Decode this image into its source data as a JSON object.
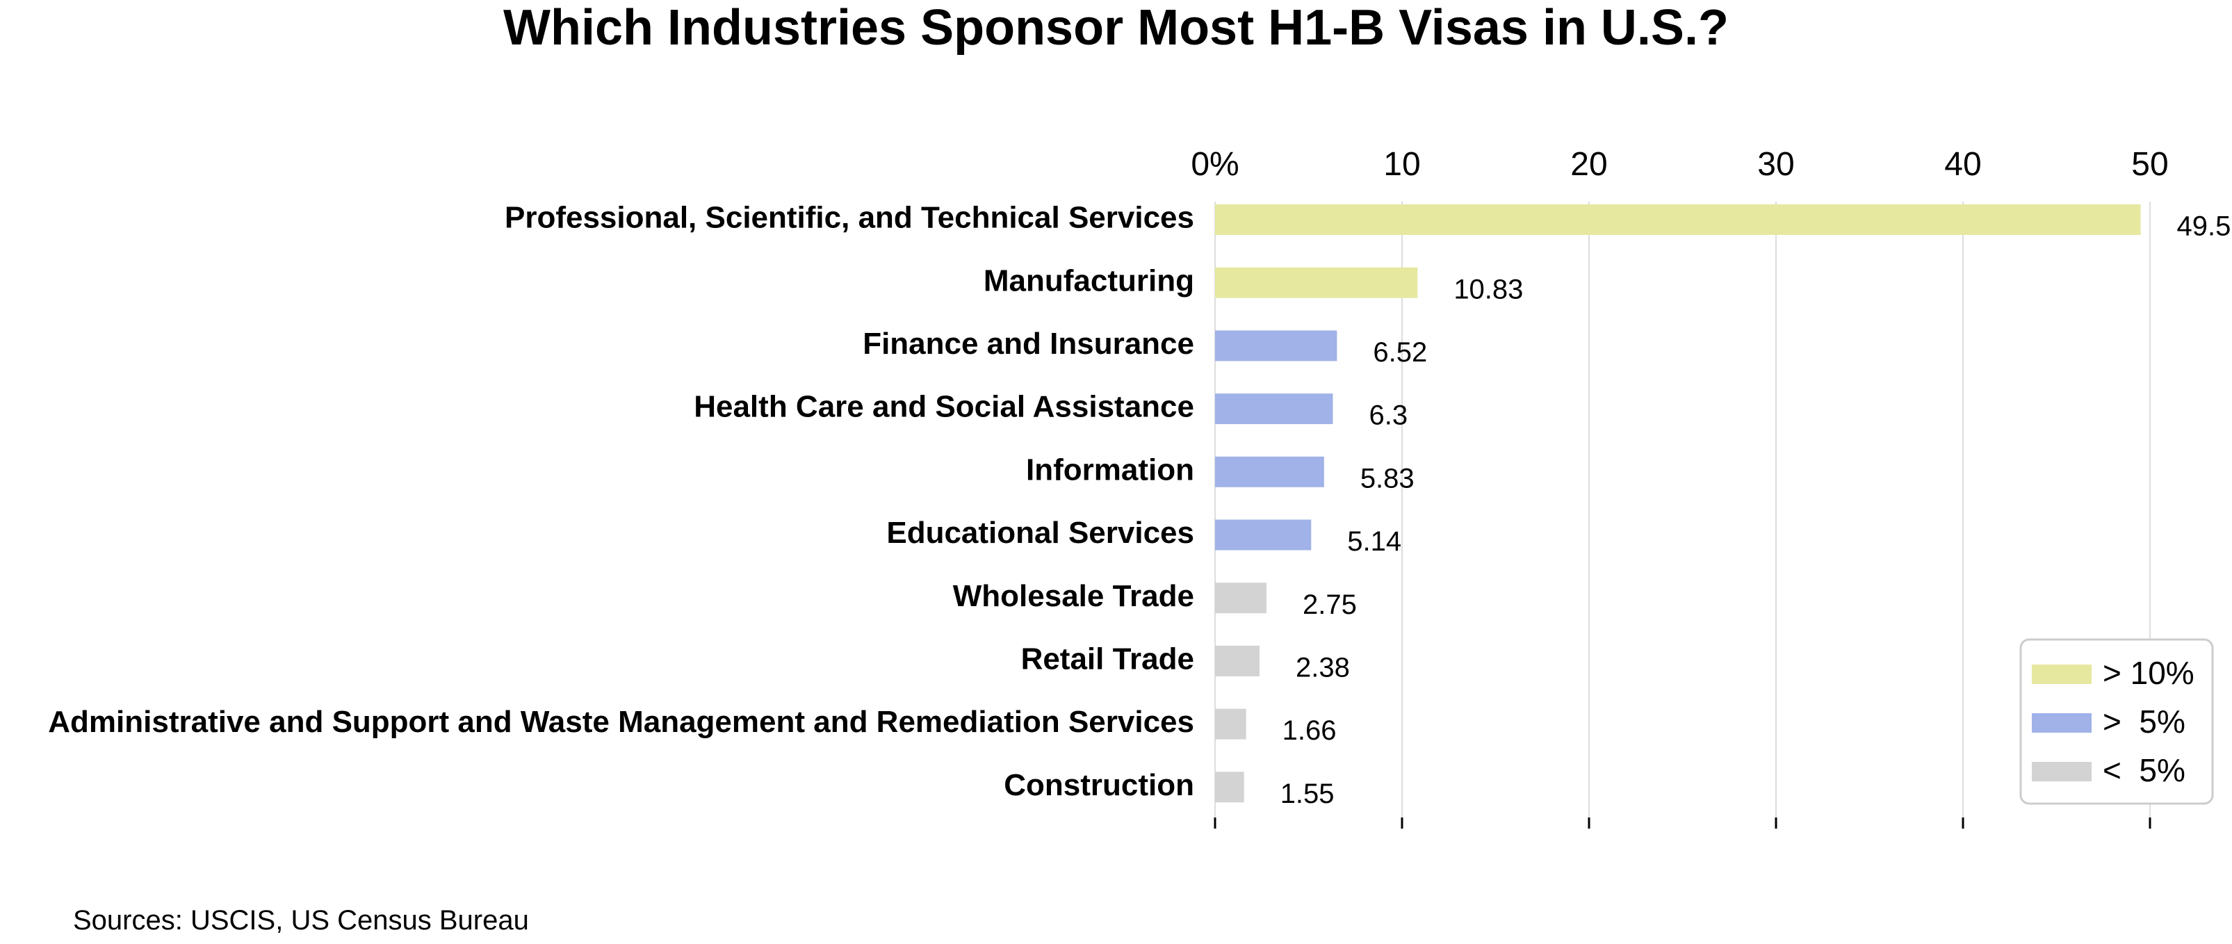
{
  "chart_data": {
    "type": "bar",
    "orientation": "horizontal",
    "title": "Which Industries Sponsor Most H1-B Visas in U.S.?",
    "xlabel": "",
    "ylabel": "",
    "xlim": [
      0,
      50
    ],
    "x_ticks": [
      0,
      10,
      20,
      30,
      40,
      50
    ],
    "x_tick_labels": [
      "0%",
      "10",
      "20",
      "30",
      "40",
      "50"
    ],
    "x_axis_position": "top",
    "grid": "vertical",
    "categories": [
      "Professional, Scientific, and Technical Services",
      "Manufacturing",
      "Finance and Insurance",
      "Health Care and Social Assistance",
      "Information",
      "Educational Services",
      "Wholesale Trade",
      "Retail Trade",
      "Administrative and Support and Waste Management and Remediation Services",
      "Construction"
    ],
    "values": [
      49.5,
      10.83,
      6.52,
      6.3,
      5.83,
      5.14,
      2.75,
      2.38,
      1.66,
      1.55
    ],
    "value_labels": [
      "49.5",
      "10.83",
      "6.52",
      "6.3",
      "5.83",
      "5.14",
      "2.75",
      "2.38",
      "1.66",
      "1.55"
    ],
    "bar_groups": [
      "gt10",
      "gt10",
      "gt5",
      "gt5",
      "gt5",
      "gt5",
      "lt5",
      "lt5",
      "lt5",
      "lt5"
    ],
    "legend": {
      "placement": "bottom-right",
      "entries": [
        {
          "key": "gt10",
          "label": "> 10%",
          "color": "#e6e8a0"
        },
        {
          "key": "gt5",
          "label": ">  5%",
          "color": "#a0b2e8"
        },
        {
          "key": "lt5",
          "label": "<  5%",
          "color": "#d3d3d3"
        }
      ]
    },
    "source": "Sources: USCIS, US Census Bureau"
  }
}
